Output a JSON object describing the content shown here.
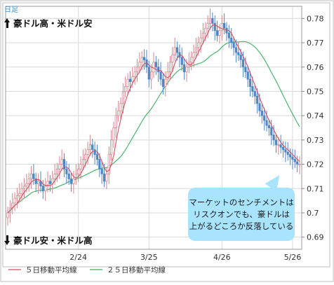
{
  "period_label": "日足",
  "up_label": "豪ドル高・米ドル安",
  "down_label": "豪ドル安・米ドル高",
  "annotation": {
    "line1": "マーケットのセンチメントは",
    "line2": "リスクオンでも、豪ドルは",
    "line3": "上がるどころか反落している"
  },
  "colors": {
    "up_candle": "#e8b4b8",
    "down_candle": "#4f86c6",
    "ma5": "#d05060",
    "ma25": "#3cb060",
    "grid": "#d9d9d9",
    "annotation_bg": "#a9e4ff"
  },
  "chart_data": {
    "type": "candlestick",
    "x_tick_labels": [
      "2/24",
      "3/25",
      "4/26",
      "5/26"
    ],
    "x_tick_index": [
      30,
      60,
      91,
      121
    ],
    "y_ticks": [
      0.69,
      0.7,
      0.71,
      0.72,
      0.73,
      0.74,
      0.75,
      0.76,
      0.77,
      0.78
    ],
    "ylim": [
      0.685,
      0.785
    ],
    "legend": [
      {
        "name": "５日移動平均線",
        "color": "#d05060"
      },
      {
        "name": "２５日移動平均線",
        "color": "#3cb060"
      }
    ],
    "close": [
      0.7,
      0.702,
      0.704,
      0.706,
      0.707,
      0.708,
      0.71,
      0.711,
      0.712,
      0.714,
      0.716,
      0.714,
      0.712,
      0.713,
      0.711,
      0.709,
      0.711,
      0.713,
      0.712,
      0.714,
      0.716,
      0.718,
      0.72,
      0.722,
      0.718,
      0.716,
      0.714,
      0.712,
      0.714,
      0.716,
      0.718,
      0.72,
      0.722,
      0.724,
      0.726,
      0.728,
      0.726,
      0.724,
      0.722,
      0.718,
      0.716,
      0.713,
      0.716,
      0.724,
      0.73,
      0.735,
      0.74,
      0.742,
      0.745,
      0.75,
      0.752,
      0.755,
      0.754,
      0.756,
      0.758,
      0.76,
      0.762,
      0.764,
      0.763,
      0.76,
      0.755,
      0.758,
      0.762,
      0.76,
      0.758,
      0.755,
      0.752,
      0.755,
      0.758,
      0.762,
      0.765,
      0.768,
      0.766,
      0.764,
      0.761,
      0.758,
      0.76,
      0.762,
      0.764,
      0.766,
      0.768,
      0.77,
      0.772,
      0.774,
      0.776,
      0.778,
      0.78,
      0.778,
      0.775,
      0.773,
      0.775,
      0.778,
      0.776,
      0.774,
      0.772,
      0.77,
      0.768,
      0.766,
      0.765,
      0.763,
      0.76,
      0.758,
      0.755,
      0.752,
      0.75,
      0.748,
      0.745,
      0.742,
      0.74,
      0.738,
      0.736,
      0.735,
      0.732,
      0.73,
      0.728,
      0.728,
      0.727,
      0.726,
      0.725,
      0.724,
      0.723,
      0.722,
      0.721,
      0.72,
      0.72
    ]
  }
}
